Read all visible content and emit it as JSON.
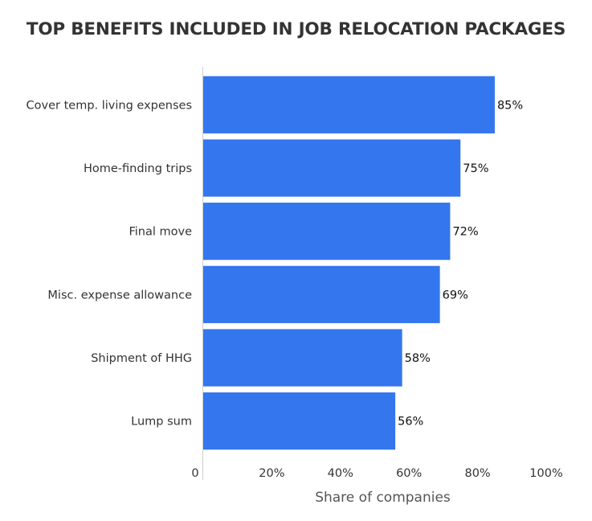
{
  "chart_data": {
    "type": "bar",
    "orientation": "horizontal",
    "title": "TOP BENEFITS INCLUDED IN JOB RELOCATION PACKAGES",
    "xlabel": "Share of companies",
    "ylabel": "",
    "categories": [
      "Cover temp. living expenses",
      "Home-finding trips",
      "Final move",
      "Misc. expense allowance",
      "Shipment of HHG",
      "Lump sum"
    ],
    "values": [
      85,
      75,
      72,
      69,
      58,
      56
    ],
    "value_labels": [
      "85%",
      "75%",
      "72%",
      "69%",
      "58%",
      "56%"
    ],
    "xlim": [
      0,
      100
    ],
    "xticks": [
      0,
      20,
      40,
      60,
      80,
      100
    ],
    "xtick_labels": [
      "0",
      "20%",
      "40%",
      "60%",
      "80%",
      "100%"
    ],
    "bar_color": "#3476ee",
    "grid": false,
    "legend": "none"
  }
}
